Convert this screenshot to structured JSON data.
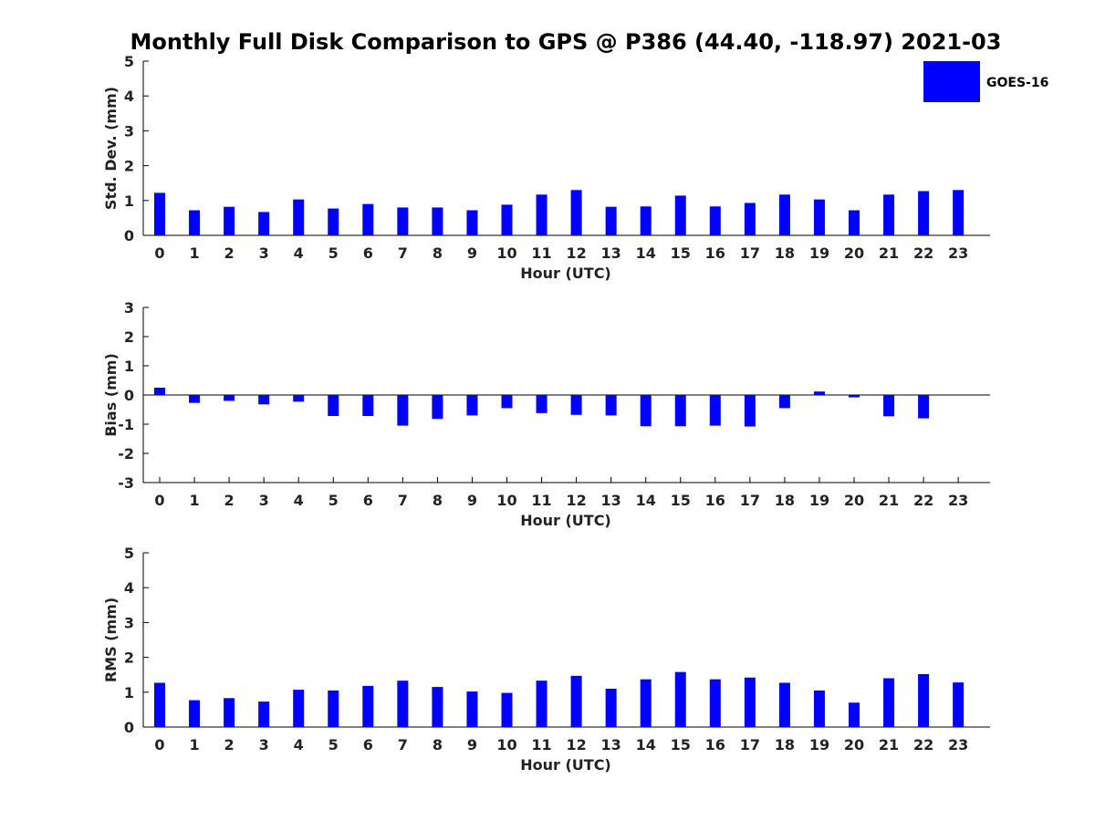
{
  "chart_title": "Monthly Full Disk Comparison to GPS @ P386 (44.40, -118.97) 2021-03",
  "legend": {
    "label": "GOES-16",
    "location": "top-right"
  },
  "colors": {
    "bar": "#0000ff",
    "axis": "#000000",
    "text": "#222222"
  },
  "chart_data": [
    {
      "type": "bar",
      "series": [
        {
          "name": "GOES-16"
        }
      ],
      "ylabel": "Std. Dev. (mm)",
      "xlabel": "Hour (UTC)",
      "ylim": [
        0,
        5
      ],
      "yticks": [
        0,
        1,
        2,
        3,
        4,
        5
      ],
      "categories": [
        "0",
        "1",
        "2",
        "3",
        "4",
        "5",
        "6",
        "7",
        "8",
        "9",
        "10",
        "11",
        "12",
        "13",
        "14",
        "15",
        "16",
        "17",
        "18",
        "19",
        "20",
        "21",
        "22",
        "23"
      ],
      "values": [
        1.22,
        0.72,
        0.82,
        0.67,
        1.03,
        0.77,
        0.9,
        0.8,
        0.8,
        0.72,
        0.88,
        1.17,
        1.3,
        0.82,
        0.83,
        1.14,
        0.83,
        0.93,
        1.17,
        1.03,
        0.72,
        1.17,
        1.27,
        1.3
      ],
      "grid": false
    },
    {
      "type": "bar",
      "series": [
        {
          "name": "GOES-16"
        }
      ],
      "ylabel": "Bias (mm)",
      "xlabel": "Hour (UTC)",
      "ylim": [
        -3,
        3
      ],
      "yticks": [
        -3,
        -2,
        -1,
        0,
        1,
        2,
        3
      ],
      "categories": [
        "0",
        "1",
        "2",
        "3",
        "4",
        "5",
        "6",
        "7",
        "8",
        "9",
        "10",
        "11",
        "12",
        "13",
        "14",
        "15",
        "16",
        "17",
        "18",
        "19",
        "20",
        "21",
        "22",
        "23"
      ],
      "values": [
        0.25,
        -0.27,
        -0.2,
        -0.32,
        -0.23,
        -0.72,
        -0.72,
        -1.05,
        -0.82,
        -0.7,
        -0.45,
        -0.62,
        -0.68,
        -0.7,
        -1.07,
        -1.07,
        -1.05,
        -1.08,
        -0.45,
        0.12,
        -0.08,
        -0.73,
        -0.8,
        0.0
      ],
      "zero_line": true,
      "grid": false
    },
    {
      "type": "bar",
      "series": [
        {
          "name": "GOES-16"
        }
      ],
      "ylabel": "RMS (mm)",
      "xlabel": "Hour (UTC)",
      "ylim": [
        0,
        5
      ],
      "yticks": [
        0,
        1,
        2,
        3,
        4,
        5
      ],
      "categories": [
        "0",
        "1",
        "2",
        "3",
        "4",
        "5",
        "6",
        "7",
        "8",
        "9",
        "10",
        "11",
        "12",
        "13",
        "14",
        "15",
        "16",
        "17",
        "18",
        "19",
        "20",
        "21",
        "22",
        "23"
      ],
      "values": [
        1.27,
        0.77,
        0.83,
        0.73,
        1.07,
        1.05,
        1.18,
        1.33,
        1.15,
        1.02,
        0.98,
        1.33,
        1.47,
        1.1,
        1.37,
        1.58,
        1.37,
        1.42,
        1.27,
        1.05,
        0.7,
        1.4,
        1.52,
        1.28
      ],
      "grid": false
    }
  ]
}
